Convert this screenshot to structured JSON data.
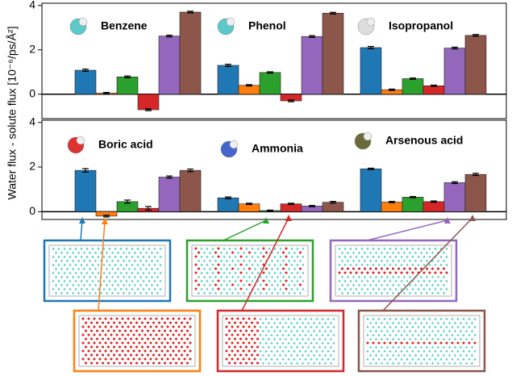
{
  "y_label": "Water flux - solute flux [10⁻⁶/ps/Å²]",
  "chart_data": [
    {
      "type": "bar",
      "categories": [
        "Benzene",
        "Phenol",
        "Isopropanol"
      ],
      "ylim": [
        -1.1,
        4.1
      ],
      "yticks": [
        0,
        2,
        4
      ],
      "series": [
        {
          "color": "#1f77b4",
          "values": [
            1.08,
            1.3,
            2.1
          ],
          "errors": [
            0.05,
            0.05,
            0.05
          ]
        },
        {
          "color": "#ff7f0e",
          "values": [
            0.05,
            0.4,
            0.2
          ],
          "errors": [
            0.03,
            0.03,
            0.03
          ]
        },
        {
          "color": "#2ca02c",
          "values": [
            0.78,
            0.98,
            0.7
          ],
          "errors": [
            0.04,
            0.03,
            0.03
          ]
        },
        {
          "color": "#d62728",
          "values": [
            -0.7,
            -0.3,
            0.38
          ],
          "errors": [
            0.04,
            0.04,
            0.03
          ]
        },
        {
          "color": "#9467bd",
          "values": [
            2.62,
            2.6,
            2.08
          ],
          "errors": [
            0.04,
            0.04,
            0.04
          ]
        },
        {
          "color": "#8c564b",
          "values": [
            3.7,
            3.65,
            2.65
          ],
          "errors": [
            0.04,
            0.04,
            0.04
          ]
        }
      ]
    },
    {
      "type": "bar",
      "categories": [
        "Boric acid",
        "Ammonia",
        "Arsenous acid"
      ],
      "ylim": [
        -0.35,
        4.1
      ],
      "yticks": [
        0,
        2,
        4
      ],
      "series": [
        {
          "color": "#1f77b4",
          "values": [
            1.85,
            0.62,
            1.92
          ],
          "errors": [
            0.08,
            0.04,
            0.03
          ]
        },
        {
          "color": "#ff7f0e",
          "values": [
            -0.2,
            0.35,
            0.43
          ],
          "errors": [
            0.04,
            0.03,
            0.03
          ]
        },
        {
          "color": "#2ca02c",
          "values": [
            0.45,
            0.05,
            0.65
          ],
          "errors": [
            0.07,
            0.02,
            0.03
          ]
        },
        {
          "color": "#d62728",
          "values": [
            0.15,
            0.35,
            0.45
          ],
          "errors": [
            0.08,
            0.03,
            0.03
          ]
        },
        {
          "color": "#9467bd",
          "values": [
            1.55,
            0.25,
            1.3
          ],
          "errors": [
            0.05,
            0.03,
            0.04
          ]
        },
        {
          "color": "#8c564b",
          "values": [
            1.85,
            0.42,
            1.67
          ],
          "errors": [
            0.06,
            0.04,
            0.05
          ]
        }
      ]
    }
  ]
}
